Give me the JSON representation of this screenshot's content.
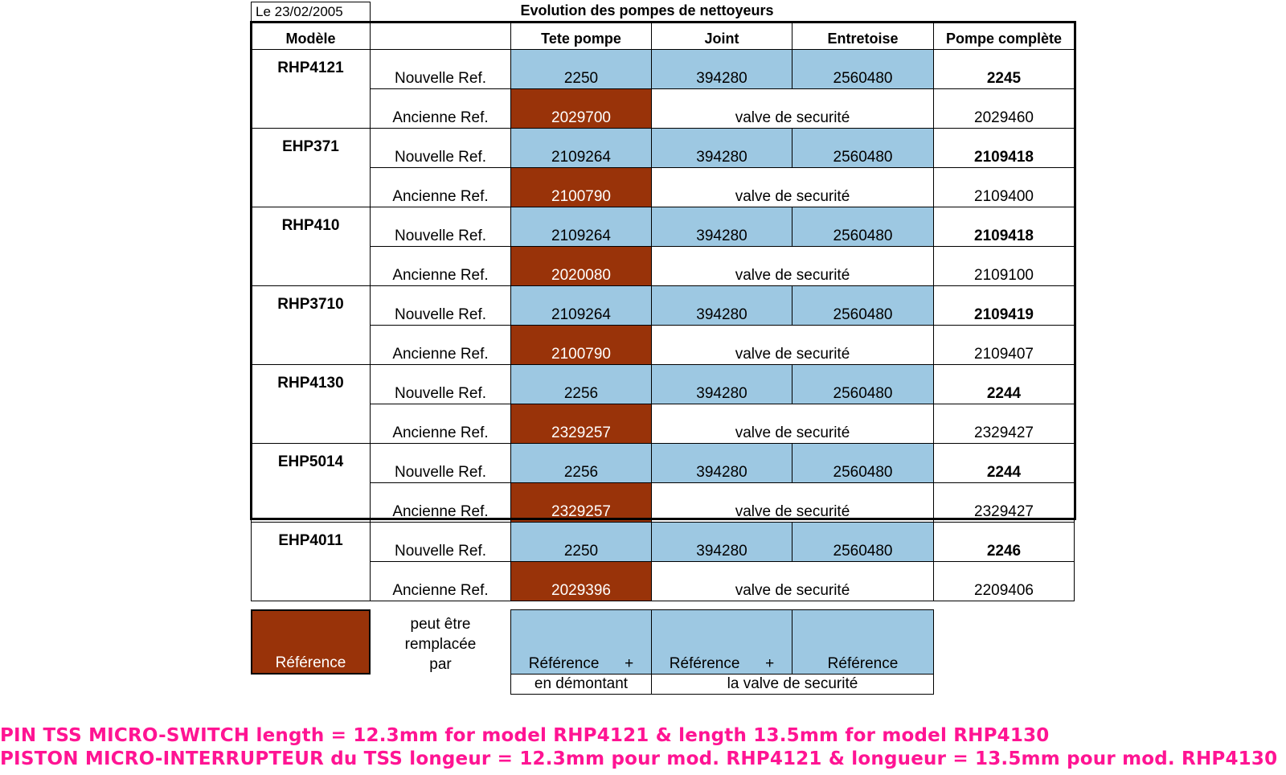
{
  "date_label": "Le 23/02/2005",
  "title": "Evolution des pompes de nettoyeurs",
  "headers": {
    "model": "Modèle",
    "ref_type": "",
    "tete_pompe": "Tete pompe",
    "joint": "Joint",
    "entretoise": "Entretoise",
    "pompe_complete": "Pompe complète"
  },
  "rows": [
    {
      "model": "RHP4121",
      "new_label": "Nouvelle Ref.",
      "new_tete": "2250",
      "new_joint": "394280",
      "new_entretoise": "2560480",
      "new_pompe": "2245",
      "old_label": "Ancienne Ref.",
      "old_tete": "2029700",
      "old_valve": "valve de securité",
      "old_pompe": "2029460"
    },
    {
      "model": "EHP371",
      "new_label": "Nouvelle Ref.",
      "new_tete": "2109264",
      "new_joint": "394280",
      "new_entretoise": "2560480",
      "new_pompe": "2109418",
      "old_label": "Ancienne Ref.",
      "old_tete": "2100790",
      "old_valve": "valve de securité",
      "old_pompe": "2109400"
    },
    {
      "model": "RHP410",
      "new_label": "Nouvelle Ref.",
      "new_tete": "2109264",
      "new_joint": "394280",
      "new_entretoise": "2560480",
      "new_pompe": "2109418",
      "old_label": "Ancienne Ref.",
      "old_tete": "2020080",
      "old_valve": "valve de securité",
      "old_pompe": "2109100"
    },
    {
      "model": "RHP3710",
      "new_label": "Nouvelle Ref.",
      "new_tete": "2109264",
      "new_joint": "394280",
      "new_entretoise": "2560480",
      "new_pompe": "2109419",
      "old_label": "Ancienne Ref.",
      "old_tete": "2100790",
      "old_valve": "valve de securité",
      "old_pompe": "2109407"
    },
    {
      "model": "RHP4130",
      "new_label": "Nouvelle Ref.",
      "new_tete": "2256",
      "new_joint": "394280",
      "new_entretoise": "2560480",
      "new_pompe": "2244",
      "old_label": "Ancienne Ref.",
      "old_tete": "2329257",
      "old_valve": "valve de securité",
      "old_pompe": "2329427"
    },
    {
      "model": "EHP5014",
      "new_label": "Nouvelle Ref.",
      "new_tete": "2256",
      "new_joint": "394280",
      "new_entretoise": "2560480",
      "new_pompe": "2244",
      "old_label": "Ancienne Ref.",
      "old_tete": "2329257",
      "old_valve": "valve de securité",
      "old_pompe": "2329427"
    },
    {
      "model": "EHP4011",
      "new_label": "Nouvelle Ref.",
      "new_tete": "2250",
      "new_joint": "394280",
      "new_entretoise": "2560480",
      "new_pompe": "2246",
      "old_label": "Ancienne Ref.",
      "old_tete": "2029396",
      "old_valve": "valve de securité",
      "old_pompe": "2209406"
    }
  ],
  "legend": {
    "brown_label": "Référence",
    "replace_text_1": "peut être",
    "replace_text_2": "remplacée",
    "replace_text_3": "par",
    "ref_plus_1": "Référence      +",
    "ref_plus_2": "Référence      +",
    "ref_3": "Référence",
    "sub_1": "en démontant",
    "sub_2": "la valve de securité"
  },
  "notes": {
    "en": "PIN TSS MICRO-SWITCH length = 12.3mm for model  RHP4121 & length 13.5mm for model RHP4130",
    "fr": "PISTON MICRO-INTERRUPTEUR du TSS longeur = 12.3mm pour mod. RHP4121 & longueur = 13.5mm pour mod. RHP4130"
  },
  "colors": {
    "blue_fill": "#9dc8e2",
    "brown_fill": "#993309",
    "note_pink": "#ff1493"
  }
}
